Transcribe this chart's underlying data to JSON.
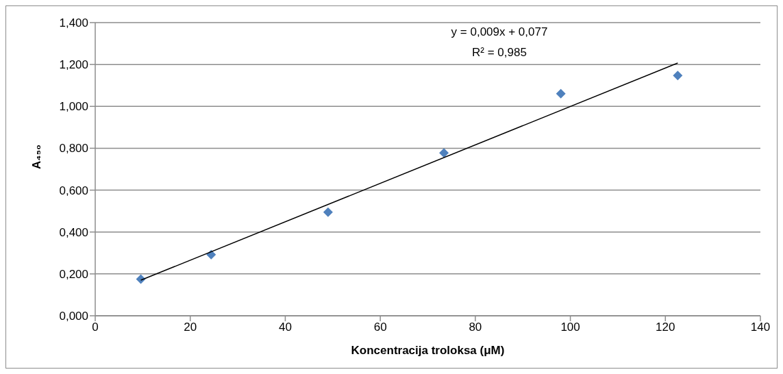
{
  "chart_data": {
    "type": "scatter",
    "xlabel": "Koncentracija troloksa (μM)",
    "ylabel": "A₄₅₀",
    "annotations": [
      "y = 0,009x + 0,077",
      "R² = 0,985"
    ],
    "series": [
      {
        "type": "scatter",
        "color": "#4f81bd",
        "marker": "diamond",
        "x": [
          9.6,
          24.4,
          49.0,
          73.4,
          98.0,
          122.6
        ],
        "values": [
          0.175,
          0.292,
          0.495,
          0.778,
          1.061,
          1.147
        ]
      },
      {
        "type": "line",
        "color": "#000000",
        "marker": "none",
        "x": [
          9.6,
          122.6
        ],
        "values": [
          0.17,
          1.207
        ]
      }
    ],
    "xlim": [
      0,
      140
    ],
    "xticks": [
      0,
      20,
      40,
      60,
      80,
      100,
      120,
      140
    ],
    "ylim": [
      0,
      1.4
    ],
    "yticks": [
      {
        "value": 0,
        "label": "0,000"
      },
      {
        "value": 0.2,
        "label": "0,200"
      },
      {
        "value": 0.4,
        "label": "0,400"
      },
      {
        "value": 0.6,
        "label": "0,600"
      },
      {
        "value": 0.8,
        "label": "0,800"
      },
      {
        "value": 1.0,
        "label": "1,000"
      },
      {
        "value": 1.2,
        "label": "1,200"
      },
      {
        "value": 1.4,
        "label": "1,400"
      }
    ],
    "grid": "y"
  }
}
